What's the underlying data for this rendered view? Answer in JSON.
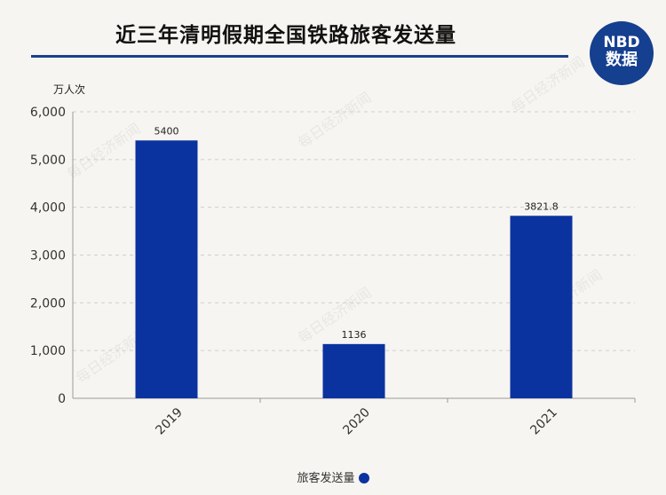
{
  "header": {
    "title": "近三年清明假期全国铁路旅客发送量",
    "logo_line1": "NBD",
    "logo_line2": "数据"
  },
  "watermark": "每日经济新闻",
  "chart_data": {
    "type": "bar",
    "categories": [
      "2019",
      "2020",
      "2021"
    ],
    "series": [
      {
        "name": "旅客发送量",
        "values": [
          5400,
          1136,
          3821.8
        ],
        "labels": [
          "5400",
          "1136",
          "3821.8"
        ]
      }
    ],
    "ylabel": "万人次",
    "ylim": [
      0,
      6000
    ],
    "yticks": [
      0,
      1000,
      2000,
      3000,
      4000,
      5000,
      6000
    ],
    "ytick_labels": [
      "0",
      "1,000",
      "2,000",
      "3,000",
      "4,000",
      "5,000",
      "6,000"
    ],
    "grid": true,
    "legend": "bottom-center",
    "bar_color": "#0b33a0"
  }
}
